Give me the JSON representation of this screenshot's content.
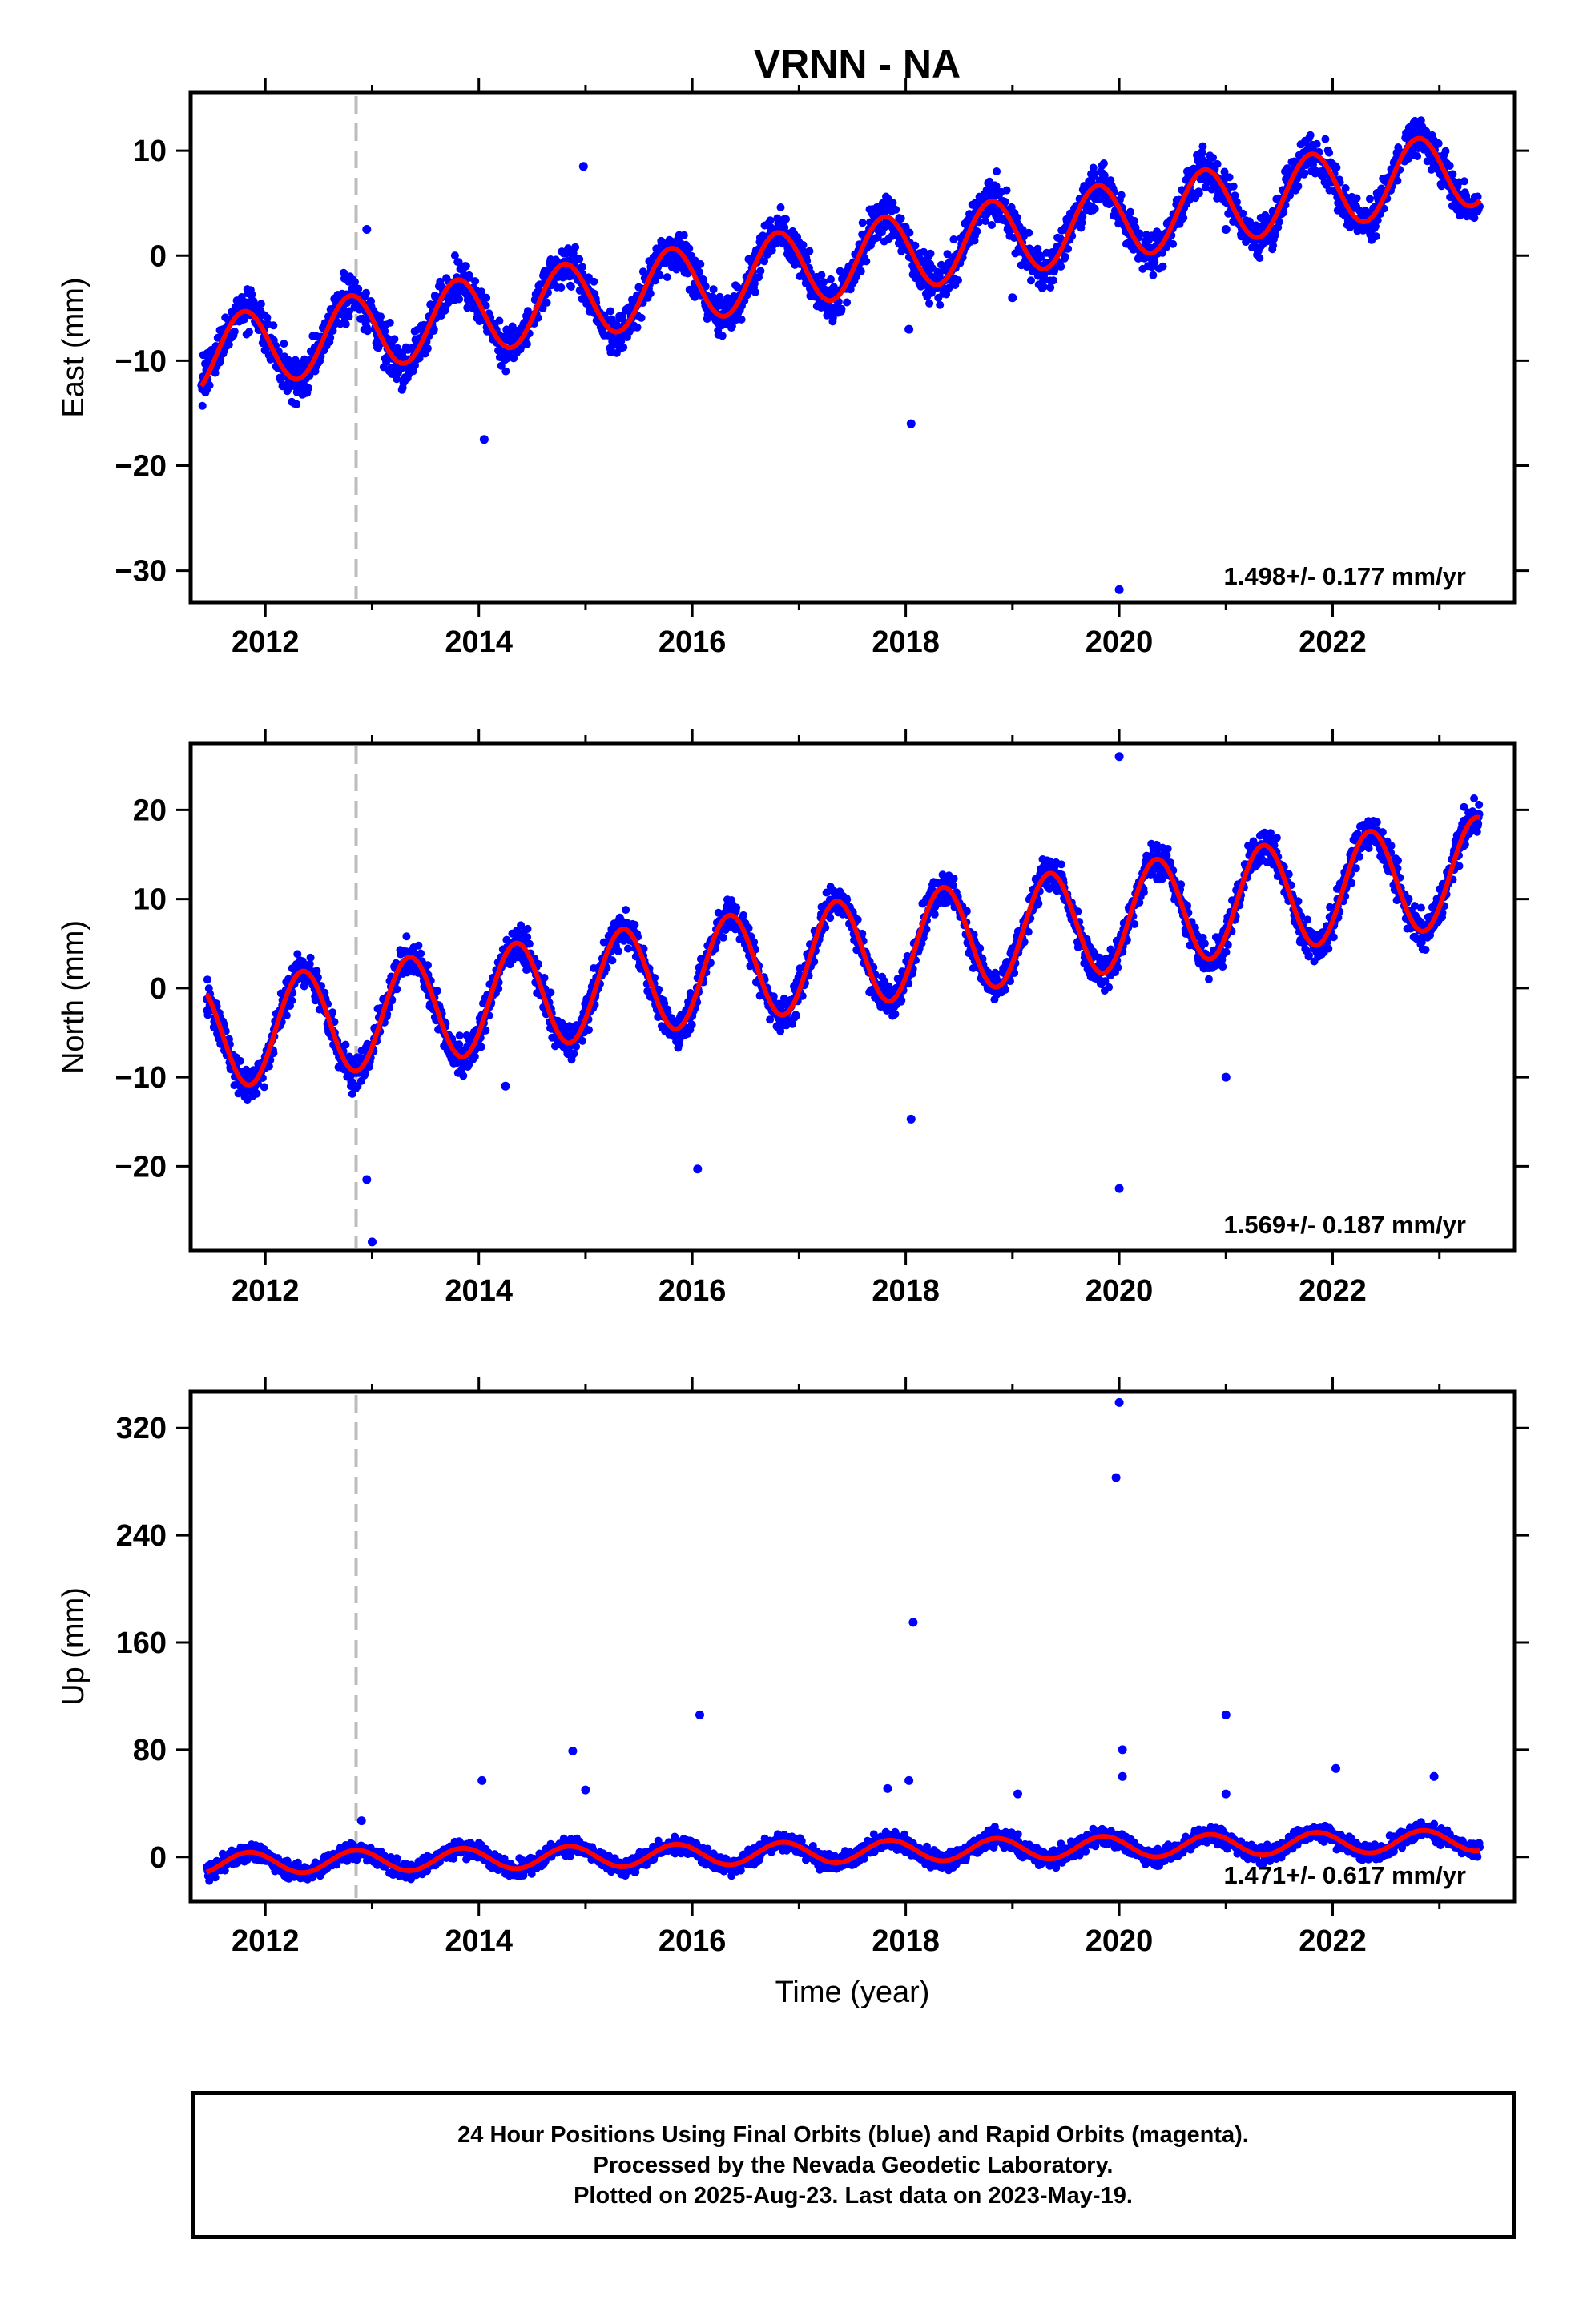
{
  "title": "VRNN - NA",
  "colors": {
    "points": "#0000ff",
    "model": "#ff0000",
    "event_line": "#bdbdbd",
    "frame": "#000000"
  },
  "chart_data": [
    {
      "type": "scatter",
      "component": "east",
      "ylabel": "East (mm)",
      "xlabel": "",
      "xlim": [
        2011.3,
        2023.7
      ],
      "ylim": [
        -33,
        15.5
      ],
      "yticks": [
        -30,
        -20,
        -10,
        0,
        10
      ],
      "xticks": [
        2012,
        2014,
        2016,
        2018,
        2020,
        2022
      ],
      "rate_label": "1.498+/- 0.177 mm/yr",
      "event_line_x": 2012.85,
      "model": {
        "start": 2011.4,
        "end": 2023.38,
        "offset": -9.5,
        "rate": 1.498,
        "amplitude": 3.6,
        "phase_year": 0.8
      },
      "outliers": [
        [
          2012.95,
          2.5
        ],
        [
          2014.05,
          -17.5
        ],
        [
          2014.98,
          8.5
        ],
        [
          2018.05,
          -16.0
        ],
        [
          2018.03,
          -7.0
        ],
        [
          2020.0,
          -31.8
        ],
        [
          2019.0,
          -4.0
        ],
        [
          2021.0,
          2.5
        ]
      ]
    },
    {
      "type": "scatter",
      "component": "north",
      "ylabel": "North (mm)",
      "xlabel": "",
      "xlim": [
        2011.3,
        2023.7
      ],
      "ylim": [
        -29.5,
        27.5
      ],
      "yticks": [
        -20,
        -10,
        0,
        10,
        20
      ],
      "xticks": [
        2012,
        2014,
        2016,
        2018,
        2020,
        2022
      ],
      "rate_label": "1.569+/- 0.187 mm/yr",
      "event_line_x": 2012.85,
      "model": {
        "start": 2011.45,
        "end": 2023.38,
        "offset": -5.5,
        "rate": 1.569,
        "amplitude": 6.0,
        "phase_year": 0.35
      },
      "outliers": [
        [
          2012.95,
          -21.5
        ],
        [
          2013.0,
          -28.5
        ],
        [
          2016.05,
          -20.3
        ],
        [
          2018.05,
          -14.7
        ],
        [
          2020.0,
          26.0
        ],
        [
          2020.0,
          -22.5
        ],
        [
          2021.0,
          -10.0
        ],
        [
          2014.25,
          -11.0
        ]
      ]
    },
    {
      "type": "scatter",
      "component": "up",
      "ylabel": "Up (mm)",
      "xlabel": "Time (year)",
      "xlim": [
        2011.3,
        2023.7
      ],
      "ylim": [
        -33,
        347
      ],
      "yticks": [
        0,
        80,
        160,
        240,
        320
      ],
      "xticks": [
        2012,
        2014,
        2016,
        2018,
        2020,
        2022
      ],
      "rate_label": "1.471+/- 0.617 mm/yr",
      "event_line_x": 2012.85,
      "model": {
        "start": 2011.45,
        "end": 2023.38,
        "offset": -5.0,
        "rate": 1.471,
        "amplitude": 8.0,
        "phase_year": 0.85
      },
      "outliers": [
        [
          2020.0,
          339
        ],
        [
          2019.97,
          283
        ],
        [
          2018.07,
          175
        ],
        [
          2016.07,
          106
        ],
        [
          2021.0,
          106
        ],
        [
          2014.88,
          79
        ],
        [
          2020.03,
          80
        ],
        [
          2022.03,
          66
        ],
        [
          2014.03,
          57
        ],
        [
          2015.0,
          50
        ],
        [
          2018.03,
          57
        ],
        [
          2017.83,
          51
        ],
        [
          2019.05,
          47
        ],
        [
          2022.95,
          60
        ],
        [
          2020.03,
          60
        ],
        [
          2012.9,
          27
        ],
        [
          2021.0,
          47
        ]
      ]
    }
  ],
  "footer": {
    "line1": "24 Hour Positions Using Final Orbits (blue) and Rapid Orbits (magenta).",
    "line2": "Processed by the Nevada Geodetic Laboratory.",
    "line3": "Plotted on 2025-Aug-23. Last data on 2023-May-19."
  }
}
